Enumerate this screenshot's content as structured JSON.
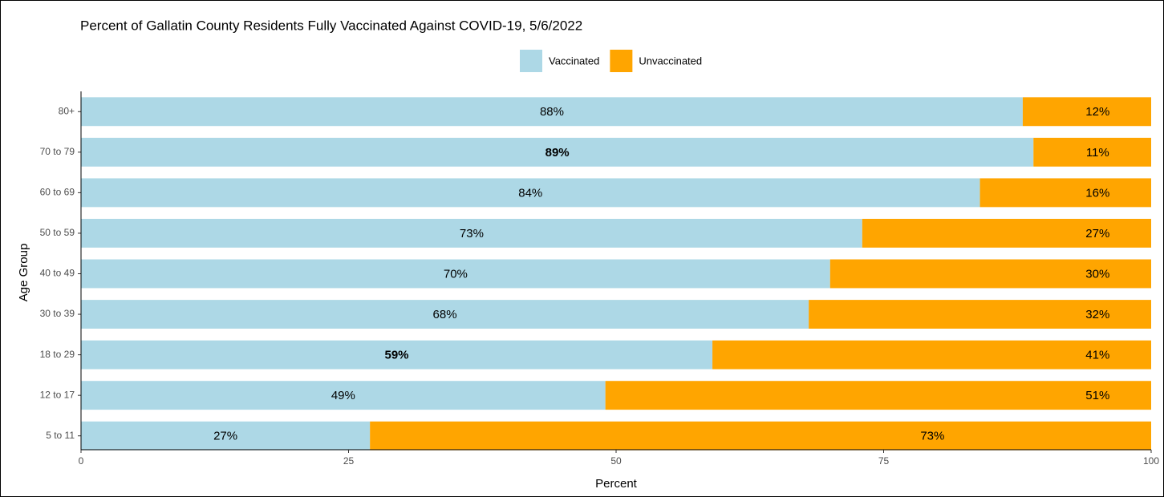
{
  "chart_data": {
    "type": "stacked_barh",
    "title": "Percent of Gallatin County Residents Fully Vaccinated Against COVID-19, 5/6/2022",
    "x_label": "Percent",
    "y_label": "Age Group",
    "categories": [
      "80+",
      "70 to 79",
      "60 to 69",
      "50 to 59",
      "40 to 49",
      "30 to 39",
      "18 to 29",
      "12 to 17",
      "5 to 11"
    ],
    "series": [
      {
        "name": "Vaccinated",
        "color": "#add8e6",
        "values": [
          88,
          89,
          84,
          73,
          70,
          68,
          59,
          49,
          27
        ],
        "value_labels": [
          "88%",
          "89%",
          "84%",
          "73%",
          "70%",
          "68%",
          "59%",
          "49%",
          "27%"
        ],
        "bold": [
          false,
          true,
          false,
          false,
          false,
          false,
          true,
          false,
          false
        ]
      },
      {
        "name": "Unvaccinated",
        "color": "#ffa500",
        "values": [
          12,
          11,
          16,
          27,
          30,
          32,
          41,
          51,
          73
        ],
        "value_labels": [
          "12%",
          "11%",
          "16%",
          "27%",
          "30%",
          "32%",
          "41%",
          "51%",
          "73%"
        ],
        "bold": [
          false,
          false,
          false,
          false,
          false,
          false,
          false,
          false,
          false
        ]
      }
    ],
    "xlim": [
      0,
      100
    ],
    "xticks": [
      0,
      25,
      50,
      75,
      100
    ],
    "grid": false,
    "legend": "top"
  }
}
